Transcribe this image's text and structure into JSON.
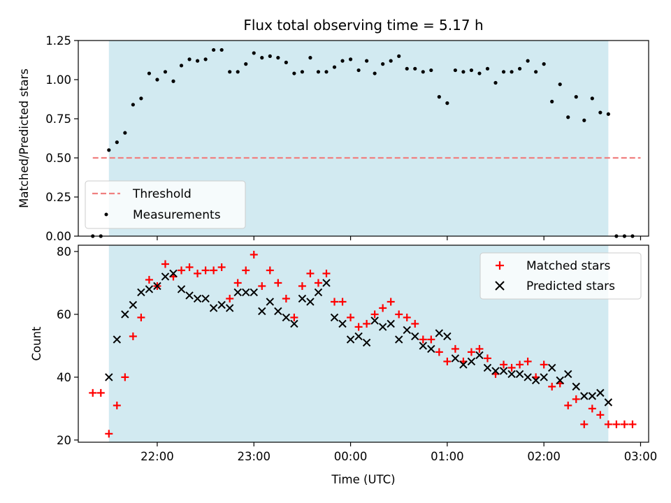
{
  "chart_data": [
    {
      "type": "scatter",
      "title": "Flux total observing time = 5.17 h",
      "xlabel": "",
      "ylabel": "Matched/Predicted stars",
      "ylim": [
        0,
        1.25
      ],
      "yticks": [
        "0.00",
        "0.25",
        "0.50",
        "0.75",
        "1.00",
        "1.25"
      ],
      "ytick_values": [
        0,
        0.25,
        0.5,
        0.75,
        1.0,
        1.25
      ],
      "xlim": [
        "21:11",
        "03:05"
      ],
      "observing_window": [
        "21:30",
        "02:40"
      ],
      "observing_window_color": "#add8e6",
      "threshold": {
        "name": "Threshold",
        "value": 0.5,
        "x": [
          "21:20",
          "03:00"
        ],
        "color": "#f08080"
      },
      "legend": {
        "placement": "lower-left",
        "entries": [
          "Threshold",
          "Measurements"
        ]
      },
      "series": [
        {
          "name": "Measurements",
          "marker": "dot",
          "color": "#000000",
          "x": [
            "21:20",
            "21:25",
            "21:30",
            "21:35",
            "21:40",
            "21:45",
            "21:50",
            "21:55",
            "22:00",
            "22:05",
            "22:10",
            "22:15",
            "22:20",
            "22:25",
            "22:30",
            "22:35",
            "22:40",
            "22:45",
            "22:50",
            "22:55",
            "23:00",
            "23:05",
            "23:10",
            "23:15",
            "23:20",
            "23:25",
            "23:30",
            "23:35",
            "23:40",
            "23:45",
            "23:50",
            "23:55",
            "00:00",
            "00:05",
            "00:10",
            "00:15",
            "00:20",
            "00:25",
            "00:30",
            "00:35",
            "00:40",
            "00:45",
            "00:50",
            "00:55",
            "01:00",
            "01:05",
            "01:10",
            "01:15",
            "01:20",
            "01:25",
            "01:30",
            "01:35",
            "01:40",
            "01:45",
            "01:50",
            "01:55",
            "02:00",
            "02:05",
            "02:10",
            "02:15",
            "02:20",
            "02:25",
            "02:30",
            "02:35",
            "02:40",
            "02:45",
            "02:50",
            "02:55"
          ],
          "y": [
            0,
            0,
            0.55,
            0.6,
            0.66,
            0.84,
            0.88,
            1.04,
            1.0,
            1.05,
            0.99,
            1.09,
            1.13,
            1.12,
            1.13,
            1.19,
            1.19,
            1.05,
            1.05,
            1.1,
            1.17,
            1.14,
            1.15,
            1.14,
            1.11,
            1.04,
            1.05,
            1.14,
            1.05,
            1.05,
            1.08,
            1.12,
            1.13,
            1.06,
            1.12,
            1.04,
            1.1,
            1.12,
            1.15,
            1.07,
            1.07,
            1.05,
            1.06,
            0.89,
            0.85,
            1.06,
            1.05,
            1.06,
            1.04,
            1.07,
            0.98,
            1.05,
            1.05,
            1.07,
            1.12,
            1.05,
            1.1,
            0.86,
            0.97,
            0.76,
            0.89,
            0.74,
            0.88,
            0.79,
            0.78,
            0,
            0,
            0
          ]
        }
      ]
    },
    {
      "type": "scatter",
      "title": "",
      "xlabel": "Time (UTC)",
      "ylabel": "Count",
      "ylim": [
        19.3,
        82
      ],
      "yticks": [
        "20",
        "40",
        "60",
        "80"
      ],
      "ytick_values": [
        20,
        40,
        60,
        80
      ],
      "xlim": [
        "21:11",
        "03:05"
      ],
      "xticks": [
        "22:00",
        "23:00",
        "00:00",
        "01:00",
        "02:00",
        "03:00"
      ],
      "observing_window": [
        "21:30",
        "02:40"
      ],
      "observing_window_color": "#add8e6",
      "legend": {
        "placement": "top-right",
        "entries": [
          "Matched stars",
          "Predicted stars"
        ]
      },
      "series": [
        {
          "name": "Matched stars",
          "marker": "plus",
          "color": "#ff0000",
          "x": [
            "21:20",
            "21:25",
            "21:30",
            "21:35",
            "21:40",
            "21:45",
            "21:50",
            "21:55",
            "22:00",
            "22:05",
            "22:10",
            "22:15",
            "22:20",
            "22:25",
            "22:30",
            "22:35",
            "22:40",
            "22:45",
            "22:50",
            "22:55",
            "23:00",
            "23:05",
            "23:10",
            "23:15",
            "23:20",
            "23:25",
            "23:30",
            "23:35",
            "23:40",
            "23:45",
            "23:50",
            "23:55",
            "00:00",
            "00:05",
            "00:10",
            "00:15",
            "00:20",
            "00:25",
            "00:30",
            "00:35",
            "00:40",
            "00:45",
            "00:50",
            "00:55",
            "01:00",
            "01:05",
            "01:10",
            "01:15",
            "01:20",
            "01:25",
            "01:30",
            "01:35",
            "01:40",
            "01:45",
            "01:50",
            "01:55",
            "02:00",
            "02:05",
            "02:10",
            "02:15",
            "02:20",
            "02:25",
            "02:30",
            "02:35",
            "02:40",
            "02:45",
            "02:50",
            "02:55"
          ],
          "y": [
            35,
            35,
            22,
            31,
            40,
            53,
            59,
            71,
            69,
            76,
            72,
            74,
            75,
            73,
            74,
            74,
            75,
            65,
            70,
            74,
            79,
            69,
            74,
            70,
            65,
            59,
            69,
            73,
            70,
            73,
            64,
            64,
            59,
            56,
            57,
            60,
            62,
            64,
            60,
            59,
            57,
            52,
            52,
            48,
            45,
            49,
            45,
            48,
            49,
            46,
            41,
            44,
            43,
            44,
            45,
            40,
            44,
            37,
            38,
            31,
            33,
            25,
            30,
            28,
            25,
            25,
            25,
            25
          ]
        },
        {
          "name": "Predicted stars",
          "marker": "x",
          "color": "#000000",
          "x": [
            "21:30",
            "21:35",
            "21:40",
            "21:45",
            "21:50",
            "21:55",
            "22:00",
            "22:05",
            "22:10",
            "22:15",
            "22:20",
            "22:25",
            "22:30",
            "22:35",
            "22:40",
            "22:45",
            "22:50",
            "22:55",
            "23:00",
            "23:05",
            "23:10",
            "23:15",
            "23:20",
            "23:25",
            "23:30",
            "23:35",
            "23:40",
            "23:45",
            "23:50",
            "23:55",
            "00:00",
            "00:05",
            "00:10",
            "00:15",
            "00:20",
            "00:25",
            "00:30",
            "00:35",
            "00:40",
            "00:45",
            "00:50",
            "00:55",
            "01:00",
            "01:05",
            "01:10",
            "01:15",
            "01:20",
            "01:25",
            "01:30",
            "01:35",
            "01:40",
            "01:45",
            "01:50",
            "01:55",
            "02:00",
            "02:05",
            "02:10",
            "02:15",
            "02:20",
            "02:25",
            "02:30",
            "02:35",
            "02:40"
          ],
          "y": [
            40,
            52,
            60,
            63,
            67,
            68,
            69,
            72,
            73,
            68,
            66,
            65,
            65,
            62,
            63,
            62,
            67,
            67,
            67,
            61,
            64,
            61,
            59,
            57,
            65,
            64,
            67,
            70,
            59,
            57,
            52,
            53,
            51,
            58,
            56,
            57,
            52,
            55,
            53,
            50,
            49,
            54,
            53,
            46,
            44,
            45,
            47,
            43,
            42,
            42,
            41,
            41,
            40,
            39,
            40,
            43,
            39,
            41,
            37,
            34,
            34,
            35,
            32
          ]
        }
      ]
    }
  ]
}
